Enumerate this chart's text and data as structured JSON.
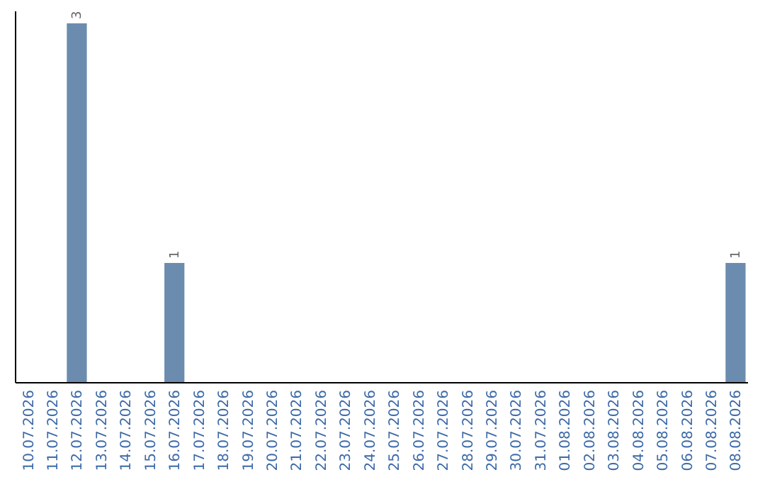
{
  "chart_data": {
    "type": "bar",
    "categories": [
      "10.07.2026",
      "11.07.2026",
      "12.07.2026",
      "13.07.2026",
      "14.07.2026",
      "15.07.2026",
      "16.07.2026",
      "17.07.2026",
      "18.07.2026",
      "19.07.2026",
      "20.07.2026",
      "21.07.2026",
      "22.07.2026",
      "23.07.2026",
      "24.07.2026",
      "25.07.2026",
      "26.07.2026",
      "27.07.2026",
      "28.07.2026",
      "29.07.2026",
      "30.07.2026",
      "31.07.2026",
      "01.08.2026",
      "02.08.2026",
      "03.08.2026",
      "04.08.2026",
      "05.08.2026",
      "06.08.2026",
      "07.08.2026",
      "08.08.2026"
    ],
    "values": [
      0,
      0,
      3,
      0,
      0,
      0,
      1,
      0,
      0,
      0,
      0,
      0,
      0,
      0,
      0,
      0,
      0,
      0,
      0,
      0,
      0,
      0,
      0,
      0,
      0,
      0,
      0,
      0,
      0,
      1
    ],
    "value_labels": [
      null,
      null,
      "3",
      null,
      null,
      null,
      "1",
      null,
      null,
      null,
      null,
      null,
      null,
      null,
      null,
      null,
      null,
      null,
      null,
      null,
      null,
      null,
      null,
      null,
      null,
      null,
      null,
      null,
      null,
      "1"
    ],
    "color": "#6b8cae",
    "ylim": [
      0,
      3.1
    ],
    "tick_labels": "x"
  }
}
